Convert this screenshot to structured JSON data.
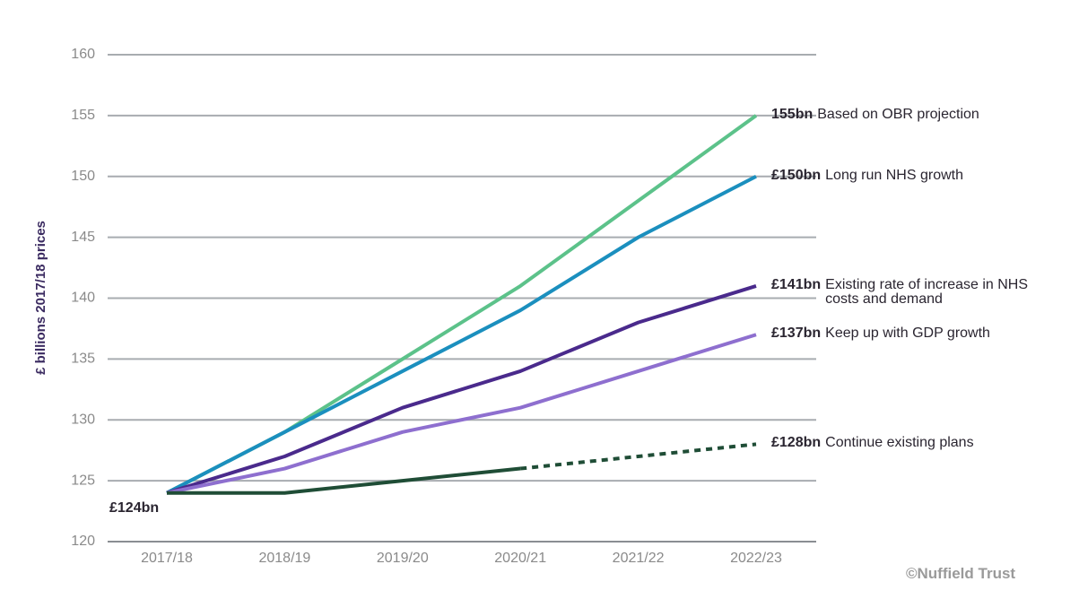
{
  "chart_data": {
    "type": "line",
    "y_axis_label": "£ billions 2017/18 prices",
    "source": "©Nuffield Trust",
    "categories": [
      "2017/18",
      "2018/19",
      "2019/20",
      "2020/21",
      "2021/22",
      "2022/23"
    ],
    "ylim": [
      120,
      160
    ],
    "yticks": [
      120,
      125,
      130,
      135,
      140,
      145,
      150,
      155,
      160
    ],
    "grid": true,
    "series": [
      {
        "name": "Based on OBR projection",
        "color": "#5cc28a",
        "values": [
          124,
          129,
          135,
          141,
          148,
          155
        ],
        "value_labels": [
          null,
          null,
          null,
          null,
          null,
          "155bn"
        ]
      },
      {
        "name": "Long run NHS growth",
        "color": "#1b8fbe",
        "values": [
          124,
          129,
          134,
          139,
          145,
          150
        ],
        "value_labels": [
          null,
          null,
          null,
          null,
          null,
          "£150bn"
        ]
      },
      {
        "name": "Existing rate of increase in NHS costs and demand",
        "color": "#4a2a8c",
        "values": [
          124,
          127,
          131,
          134,
          138,
          141
        ],
        "value_labels": [
          null,
          null,
          null,
          null,
          null,
          "£141bn"
        ]
      },
      {
        "name": "Keep up with GDP growth",
        "color": "#8e6fcf",
        "values": [
          124,
          126,
          129,
          131,
          134,
          137
        ],
        "value_labels": [
          null,
          null,
          null,
          null,
          null,
          "£137bn"
        ]
      },
      {
        "name": "Continue existing plans",
        "color": "#1f4d36",
        "values": [
          124,
          124,
          125,
          126,
          127,
          128
        ],
        "value_labels": [
          "£124bn",
          null,
          null,
          null,
          null,
          "£128bn"
        ],
        "dashed_from": "2020/21"
      }
    ]
  }
}
